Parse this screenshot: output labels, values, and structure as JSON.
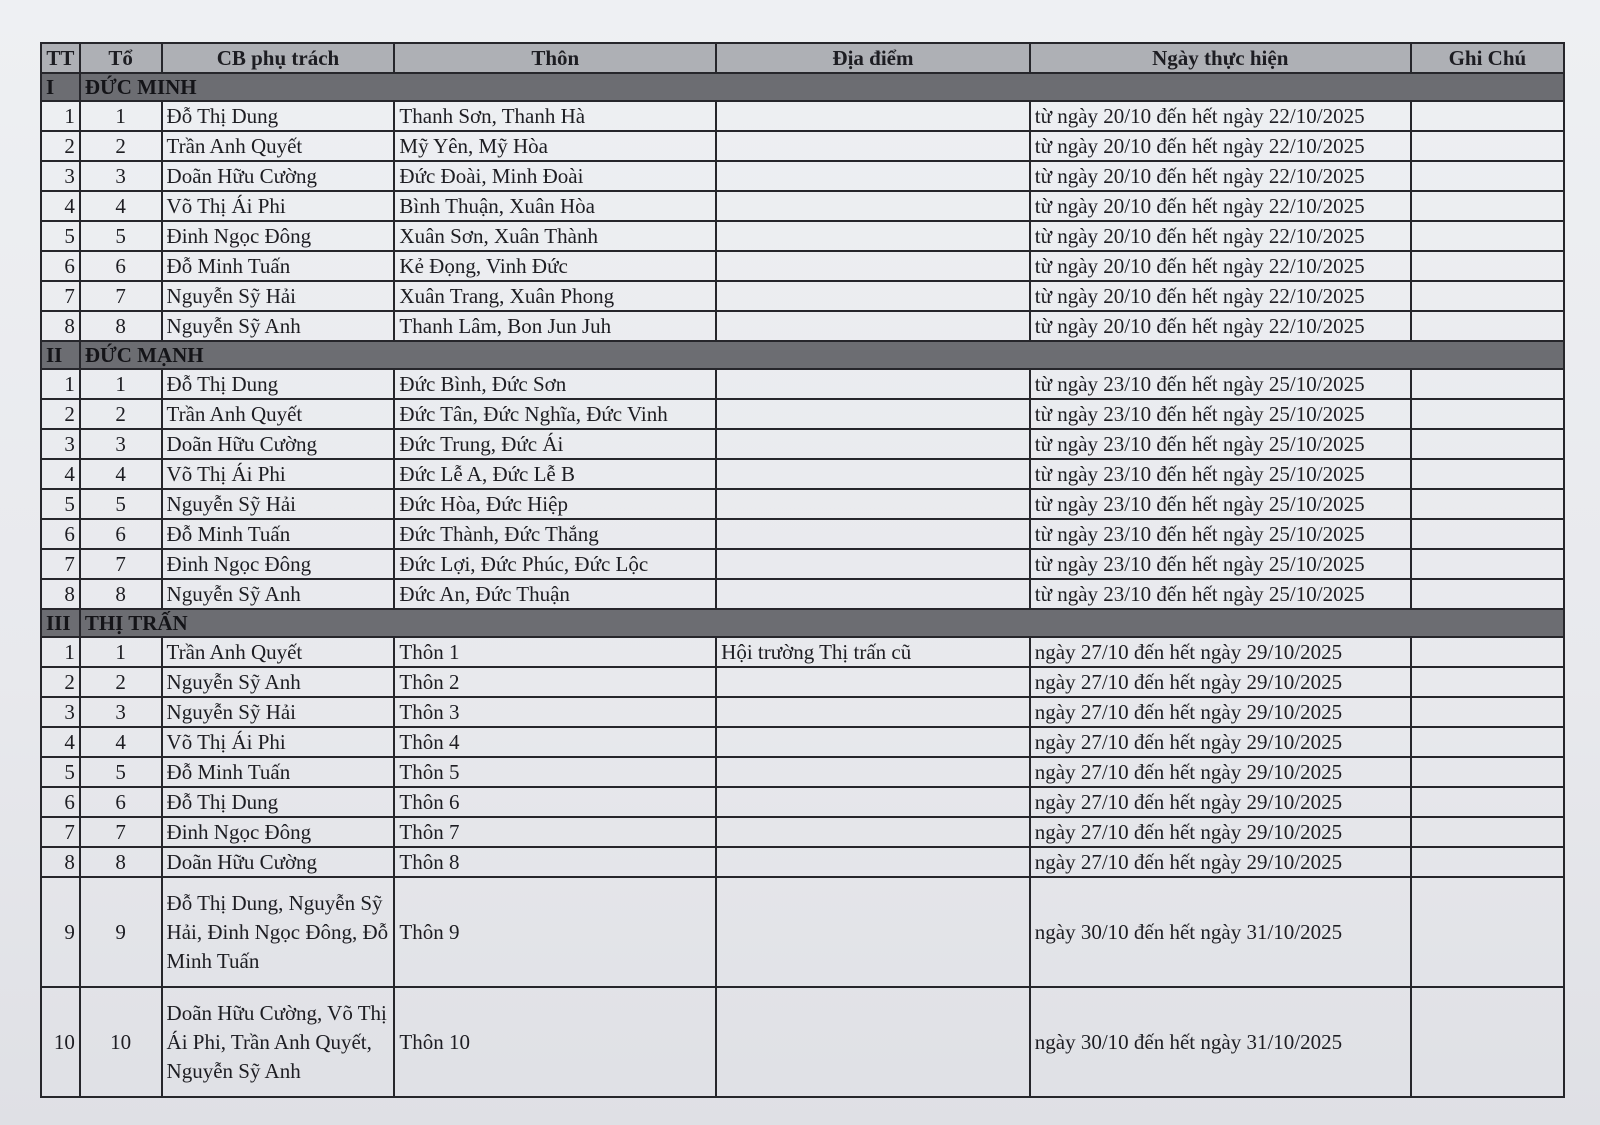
{
  "headers": [
    "TT",
    "Tổ",
    "CB phụ trách",
    "Thôn",
    "Địa điểm",
    "Ngày thực hiện",
    "Ghi Chú"
  ],
  "sections": [
    {
      "tt": "I",
      "name": "ĐỨC MINH",
      "rows": [
        {
          "tt": "1",
          "to": "1",
          "cb": "Đỗ Thị Dung",
          "thon": "Thanh Sơn, Thanh Hà",
          "dia_diem": "",
          "ngay": "từ ngày 20/10 đến hết ngày 22/10/2025",
          "ghi_chu": ""
        },
        {
          "tt": "2",
          "to": "2",
          "cb": "Trần Anh Quyết",
          "thon": "Mỹ Yên, Mỹ Hòa",
          "dia_diem": "",
          "ngay": "từ ngày 20/10 đến hết ngày 22/10/2025",
          "ghi_chu": ""
        },
        {
          "tt": "3",
          "to": "3",
          "cb": "Doãn Hữu Cường",
          "thon": "Đức Đoài, Minh Đoài",
          "dia_diem": "",
          "ngay": "từ ngày 20/10 đến hết ngày 22/10/2025",
          "ghi_chu": ""
        },
        {
          "tt": "4",
          "to": "4",
          "cb": "Võ Thị Ái Phi",
          "thon": "Bình Thuận, Xuân Hòa",
          "dia_diem": "",
          "ngay": "từ ngày 20/10 đến hết ngày 22/10/2025",
          "ghi_chu": ""
        },
        {
          "tt": "5",
          "to": "5",
          "cb": "Đinh Ngọc Đông",
          "thon": "Xuân Sơn, Xuân Thành",
          "dia_diem": "",
          "ngay": "từ ngày 20/10 đến hết ngày 22/10/2025",
          "ghi_chu": ""
        },
        {
          "tt": "6",
          "to": "6",
          "cb": "Đỗ Minh Tuấn",
          "thon": "Kẻ Đọng, Vinh Đức",
          "dia_diem": "",
          "ngay": "từ ngày 20/10 đến hết ngày 22/10/2025",
          "ghi_chu": ""
        },
        {
          "tt": "7",
          "to": "7",
          "cb": "Nguyễn Sỹ Hải",
          "thon": "Xuân Trang, Xuân Phong",
          "dia_diem": "",
          "ngay": "từ ngày 20/10 đến hết ngày 22/10/2025",
          "ghi_chu": ""
        },
        {
          "tt": "8",
          "to": "8",
          "cb": "Nguyễn Sỹ Anh",
          "thon": "Thanh Lâm, Bon Jun Juh",
          "dia_diem": "",
          "ngay": "từ ngày 20/10 đến hết ngày 22/10/2025",
          "ghi_chu": ""
        }
      ]
    },
    {
      "tt": "II",
      "name": "ĐỨC MẠNH",
      "rows": [
        {
          "tt": "1",
          "to": "1",
          "cb": "Đỗ Thị Dung",
          "thon": "Đức Bình, Đức Sơn",
          "dia_diem": "",
          "ngay": "từ ngày 23/10 đến hết ngày 25/10/2025",
          "ghi_chu": ""
        },
        {
          "tt": "2",
          "to": "2",
          "cb": "Trần Anh Quyết",
          "thon": "Đức Tân, Đức Nghĩa, Đức Vinh",
          "dia_diem": "",
          "ngay": "từ ngày 23/10 đến hết ngày 25/10/2025",
          "ghi_chu": ""
        },
        {
          "tt": "3",
          "to": "3",
          "cb": "Doãn Hữu Cường",
          "thon": "Đức Trung, Đức Ái",
          "dia_diem": "",
          "ngay": "từ ngày 23/10 đến hết ngày 25/10/2025",
          "ghi_chu": ""
        },
        {
          "tt": "4",
          "to": "4",
          "cb": "Võ Thị Ái Phi",
          "thon": "Đức Lễ A, Đức Lễ B",
          "dia_diem": "",
          "ngay": "từ ngày 23/10 đến hết ngày 25/10/2025",
          "ghi_chu": ""
        },
        {
          "tt": "5",
          "to": "5",
          "cb": "Nguyễn Sỹ Hải",
          "thon": "Đức Hòa, Đức Hiệp",
          "dia_diem": "",
          "ngay": "từ ngày 23/10 đến hết ngày 25/10/2025",
          "ghi_chu": ""
        },
        {
          "tt": "6",
          "to": "6",
          "cb": "Đỗ Minh Tuấn",
          "thon": "Đức Thành, Đức Thắng",
          "dia_diem": "",
          "ngay": "từ ngày 23/10 đến hết ngày 25/10/2025",
          "ghi_chu": ""
        },
        {
          "tt": "7",
          "to": "7",
          "cb": "Đinh Ngọc Đông",
          "thon": "Đức Lợi, Đức Phúc, Đức Lộc",
          "dia_diem": "",
          "ngay": "từ ngày 23/10 đến hết ngày 25/10/2025",
          "ghi_chu": ""
        },
        {
          "tt": "8",
          "to": "8",
          "cb": "Nguyễn Sỹ Anh",
          "thon": "Đức An, Đức Thuận",
          "dia_diem": "",
          "ngay": "từ ngày 23/10 đến hết ngày 25/10/2025",
          "ghi_chu": ""
        }
      ]
    },
    {
      "tt": "III",
      "name": "THỊ TRẤN",
      "rows": [
        {
          "tt": "1",
          "to": "1",
          "cb": "Trần Anh Quyết",
          "thon": "Thôn 1",
          "dia_diem": "Hội trường Thị trấn cũ",
          "ngay": "ngày 27/10 đến hết ngày 29/10/2025",
          "ghi_chu": ""
        },
        {
          "tt": "2",
          "to": "2",
          "cb": "Nguyễn Sỹ Anh",
          "thon": "Thôn 2",
          "dia_diem": "",
          "ngay": "ngày 27/10 đến hết ngày 29/10/2025",
          "ghi_chu": ""
        },
        {
          "tt": "3",
          "to": "3",
          "cb": "Nguyễn Sỹ Hải",
          "thon": "Thôn 3",
          "dia_diem": "",
          "ngay": "ngày 27/10 đến hết ngày 29/10/2025",
          "ghi_chu": ""
        },
        {
          "tt": "4",
          "to": "4",
          "cb": "Võ Thị Ái Phi",
          "thon": "Thôn 4",
          "dia_diem": "",
          "ngay": "ngày 27/10 đến hết ngày 29/10/2025",
          "ghi_chu": ""
        },
        {
          "tt": "5",
          "to": "5",
          "cb": "Đỗ Minh Tuấn",
          "thon": "Thôn 5",
          "dia_diem": "",
          "ngay": "ngày 27/10 đến hết ngày 29/10/2025",
          "ghi_chu": ""
        },
        {
          "tt": "6",
          "to": "6",
          "cb": "Đỗ Thị Dung",
          "thon": "Thôn 6",
          "dia_diem": "",
          "ngay": "ngày 27/10 đến hết ngày 29/10/2025",
          "ghi_chu": ""
        },
        {
          "tt": "7",
          "to": "7",
          "cb": "Đinh Ngọc Đông",
          "thon": "Thôn 7",
          "dia_diem": "",
          "ngay": "ngày 27/10 đến hết ngày 29/10/2025",
          "ghi_chu": ""
        },
        {
          "tt": "8",
          "to": "8",
          "cb": "Doãn Hữu Cường",
          "thon": "Thôn 8",
          "dia_diem": "",
          "ngay": "ngày 27/10 đến hết ngày 29/10/2025",
          "ghi_chu": ""
        },
        {
          "tt": "9",
          "to": "9",
          "cb": "Đỗ Thị Dung, Nguyễn Sỹ Hải, Đinh Ngọc Đông, Đỗ Minh Tuấn",
          "thon": "Thôn 9",
          "dia_diem": "",
          "ngay": "ngày 30/10 đến hết ngày 31/10/2025",
          "ghi_chu": ""
        },
        {
          "tt": "10",
          "to": "10",
          "cb": "Doãn Hữu Cường, Võ Thị Ái Phi, Trần Anh Quyết, Nguyễn Sỹ Anh",
          "thon": "Thôn 10",
          "dia_diem": "",
          "ngay": "ngày 30/10 đến hết ngày 31/10/2025",
          "ghi_chu": ""
        }
      ]
    }
  ]
}
